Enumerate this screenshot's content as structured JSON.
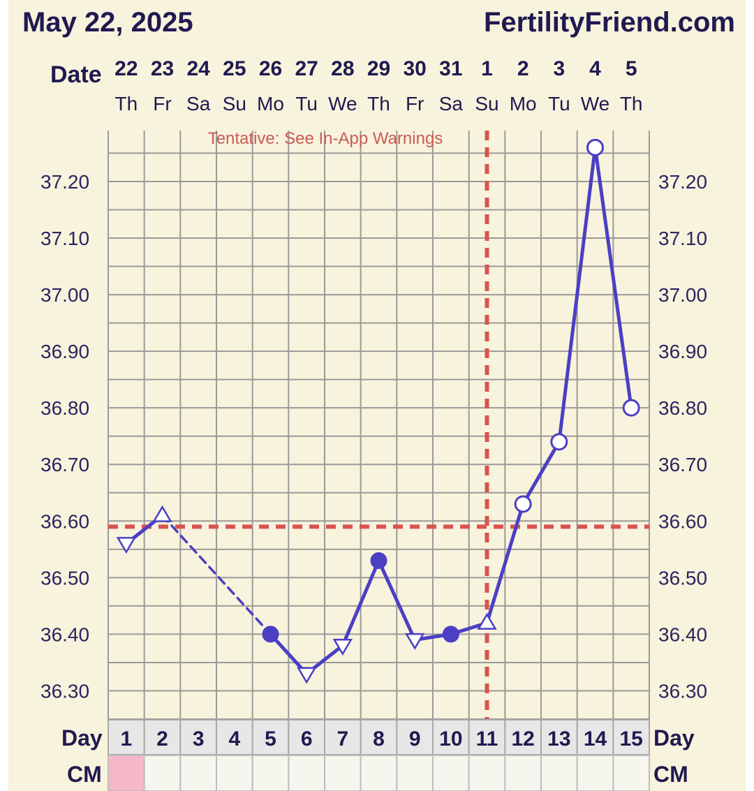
{
  "header": {
    "date": "May 22, 2025",
    "site": "FertilityFriend.com"
  },
  "labels": {
    "date": "Date",
    "day": "Day",
    "cm": "CM",
    "warning": "Tentative: See In-App Warnings"
  },
  "colors": {
    "background": "#f8f3dc",
    "grid": "#9a9a9a",
    "line": "#4b3fc4",
    "coverline": "#d9534f",
    "cm_marked": "#f4b8c8",
    "text": "#1f1a50"
  },
  "chart_data": {
    "type": "line",
    "dates": [
      "22",
      "23",
      "24",
      "25",
      "26",
      "27",
      "28",
      "29",
      "30",
      "31",
      "1",
      "2",
      "3",
      "4",
      "5"
    ],
    "weekdays": [
      "Th",
      "Fr",
      "Sa",
      "Su",
      "Mo",
      "Tu",
      "We",
      "Th",
      "Fr",
      "Sa",
      "Su",
      "Mo",
      "Tu",
      "We",
      "Th"
    ],
    "cycle_days": [
      "1",
      "2",
      "3",
      "4",
      "5",
      "6",
      "7",
      "8",
      "9",
      "10",
      "11",
      "12",
      "13",
      "14",
      "15"
    ],
    "y_ticks": [
      "36.30",
      "36.40",
      "36.50",
      "36.60",
      "36.70",
      "36.80",
      "36.90",
      "37.00",
      "37.10",
      "37.20"
    ],
    "ylim": [
      36.25,
      37.29
    ],
    "coverline": 36.59,
    "ovulation_day": 11,
    "temperatures": [
      {
        "day": 1,
        "value": 36.56,
        "marker": "triangle-down"
      },
      {
        "day": 2,
        "value": 36.61,
        "marker": "triangle-up"
      },
      {
        "day": 5,
        "value": 36.4,
        "marker": "filled-circle"
      },
      {
        "day": 6,
        "value": 36.33,
        "marker": "triangle-down"
      },
      {
        "day": 7,
        "value": 36.38,
        "marker": "triangle-down"
      },
      {
        "day": 8,
        "value": 36.53,
        "marker": "filled-circle"
      },
      {
        "day": 9,
        "value": 36.39,
        "marker": "triangle-down"
      },
      {
        "day": 10,
        "value": 36.4,
        "marker": "filled-circle"
      },
      {
        "day": 11,
        "value": 36.42,
        "marker": "triangle-up"
      },
      {
        "day": 12,
        "value": 36.63,
        "marker": "open-circle"
      },
      {
        "day": 13,
        "value": 36.74,
        "marker": "open-circle"
      },
      {
        "day": 14,
        "value": 37.26,
        "marker": "open-circle"
      },
      {
        "day": 15,
        "value": 36.8,
        "marker": "open-circle"
      }
    ],
    "dashed_segment": [
      2,
      5
    ],
    "cm_marked_days": [
      1
    ]
  }
}
